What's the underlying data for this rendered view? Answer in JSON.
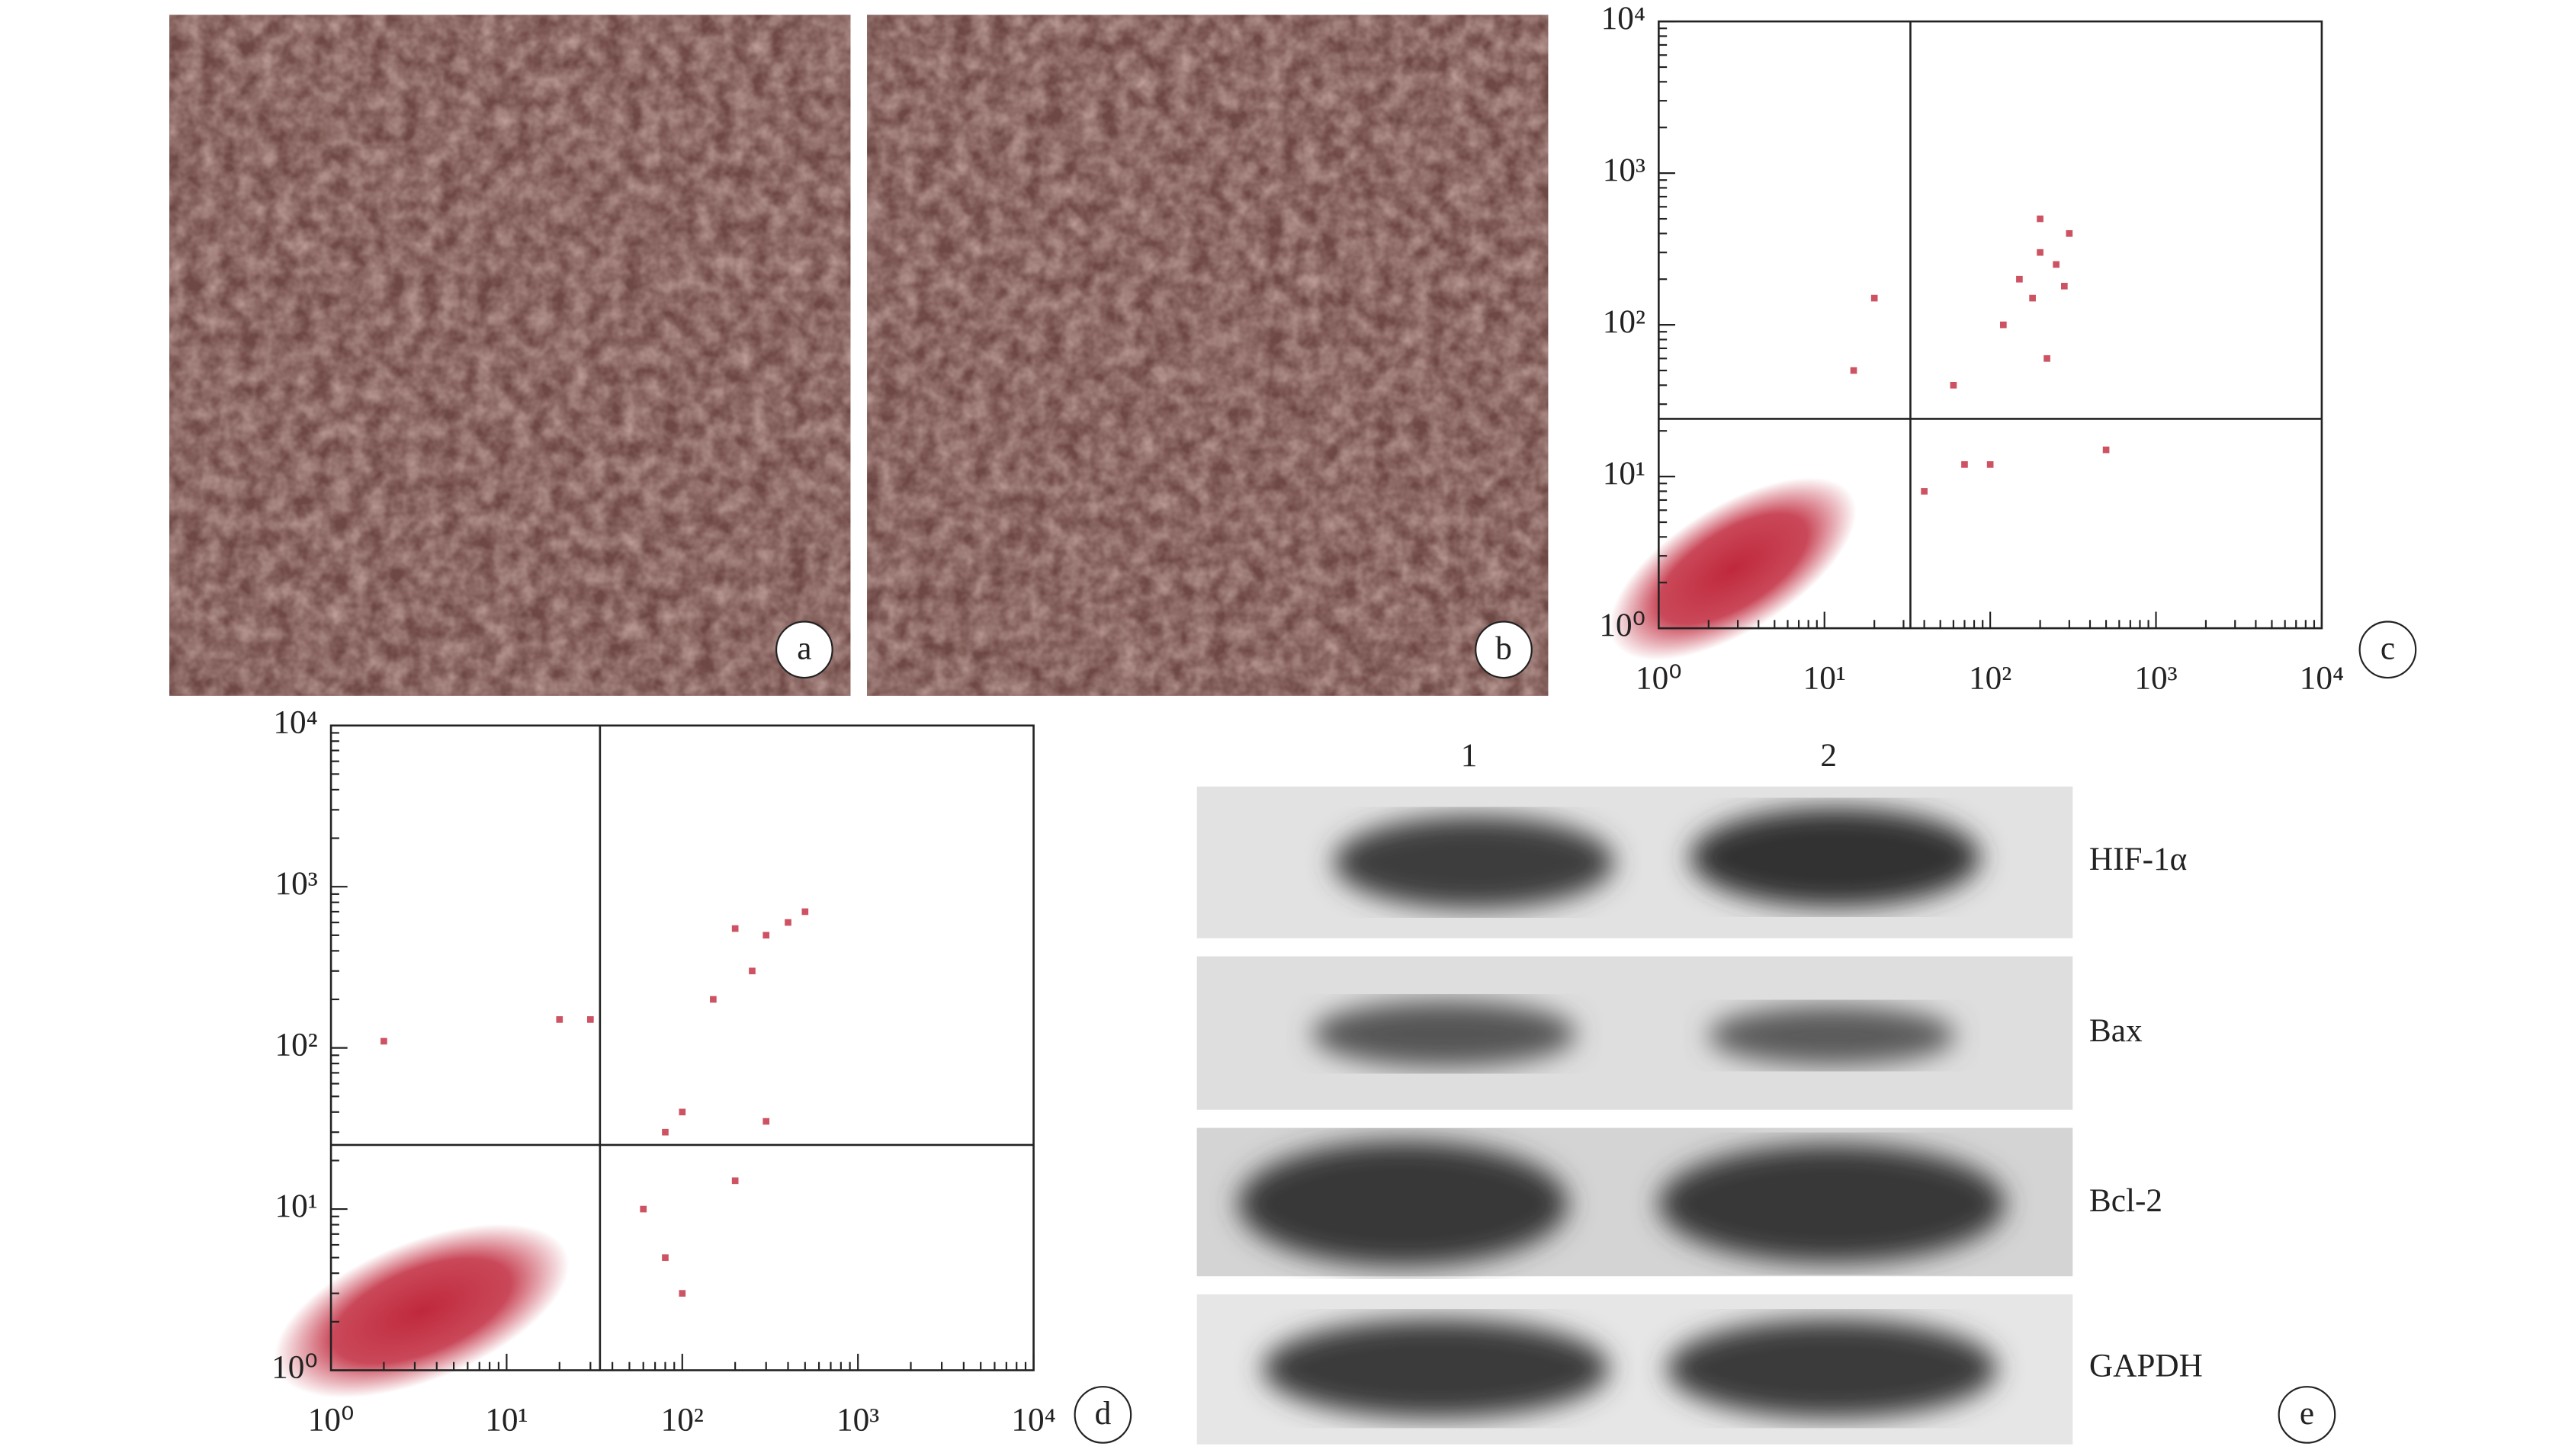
{
  "panels": [
    {
      "label": "a"
    },
    {
      "label": "b"
    }
  ],
  "chart_data": [
    {
      "type": "scatter",
      "panel_label": "c",
      "log_x": true,
      "log_y": true,
      "color": "#c0283c",
      "xlim": [
        1,
        10000
      ],
      "ylim": [
        1,
        10000
      ],
      "xticks": [
        {
          "value": 1,
          "label": "10⁰"
        },
        {
          "value": 10,
          "label": "10¹"
        },
        {
          "value": 100,
          "label": "10²"
        },
        {
          "value": 1000,
          "label": "10³"
        },
        {
          "value": 10000,
          "label": "10⁴"
        }
      ],
      "yticks": [
        {
          "value": 1,
          "label": "10⁰"
        },
        {
          "value": 10,
          "label": "10¹"
        },
        {
          "value": 100,
          "label": "10²"
        },
        {
          "value": 1000,
          "label": "10³"
        },
        {
          "value": 10000,
          "label": "10⁴"
        }
      ],
      "gates": {
        "x": 33,
        "y": 24
      },
      "x": [
        150,
        200,
        250,
        180,
        300,
        120,
        220,
        280,
        60,
        100,
        70,
        20,
        15,
        200,
        40,
        500
      ],
      "y": [
        200,
        300,
        250,
        150,
        400,
        100,
        60,
        180,
        40,
        12,
        12,
        150,
        50,
        500,
        8,
        15
      ]
    },
    {
      "type": "scatter",
      "panel_label": "d",
      "log_x": true,
      "log_y": true,
      "color": "#c0283c",
      "xlim": [
        1,
        10000
      ],
      "ylim": [
        1,
        10000
      ],
      "xticks": [
        {
          "value": 1,
          "label": "10⁰"
        },
        {
          "value": 10,
          "label": "10¹"
        },
        {
          "value": 100,
          "label": "10²"
        },
        {
          "value": 1000,
          "label": "10³"
        },
        {
          "value": 10000,
          "label": "10⁴"
        }
      ],
      "yticks": [
        {
          "value": 1,
          "label": "10⁰"
        },
        {
          "value": 10,
          "label": "10¹"
        },
        {
          "value": 100,
          "label": "10²"
        },
        {
          "value": 1000,
          "label": "10³"
        },
        {
          "value": 10000,
          "label": "10⁴"
        }
      ],
      "gates": {
        "x": 34,
        "y": 25
      },
      "x": [
        2,
        20,
        30,
        200,
        300,
        400,
        150,
        100,
        80,
        250,
        60,
        80,
        300,
        200,
        100,
        500
      ],
      "y": [
        110,
        150,
        150,
        550,
        500,
        600,
        200,
        40,
        30,
        300,
        10,
        5,
        35,
        15,
        3,
        700
      ]
    }
  ],
  "blot": {
    "panel_label": "e",
    "lanes": [
      "1",
      "2"
    ],
    "proteins": [
      "HIF-1α",
      "Bax",
      "Bcl-2",
      "GAPDH"
    ]
  }
}
